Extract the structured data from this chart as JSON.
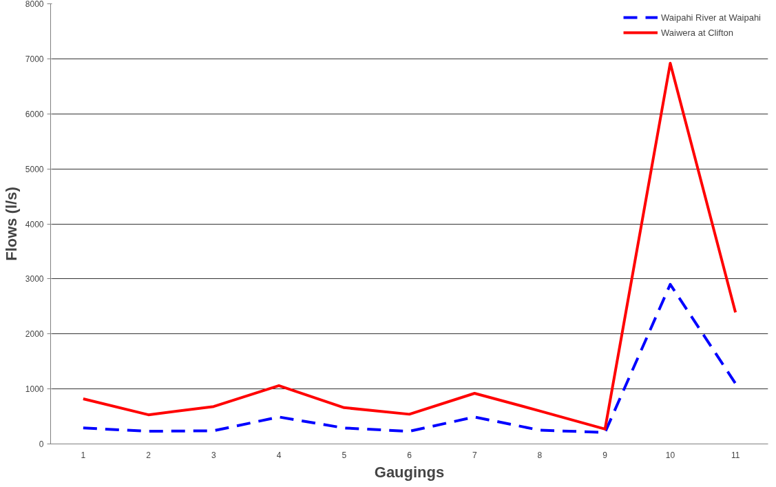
{
  "chart_data": {
    "type": "line",
    "xlabel": "Gaugings",
    "ylabel": "Flows (l/s)",
    "categories": [
      "1",
      "2",
      "3",
      "4",
      "5",
      "6",
      "7",
      "8",
      "9",
      "10",
      "11"
    ],
    "series": [
      {
        "name": "Waipahi River at Waipahi",
        "color": "#0000ff",
        "line_style": "dashed",
        "values": [
          290,
          230,
          240,
          490,
          290,
          230,
          490,
          250,
          210,
          2900,
          1100
        ]
      },
      {
        "name": "Waiwera at Clifton",
        "color": "#ff0000",
        "line_style": "solid",
        "values": [
          820,
          530,
          680,
          1060,
          660,
          540,
          920,
          600,
          270,
          6920,
          2390
        ]
      }
    ],
    "ylim": [
      0,
      8000
    ],
    "yticks": [
      0,
      1000,
      2000,
      3000,
      4000,
      5000,
      6000,
      7000,
      8000
    ],
    "grid": "y",
    "legend": "top right",
    "marker": "none"
  }
}
